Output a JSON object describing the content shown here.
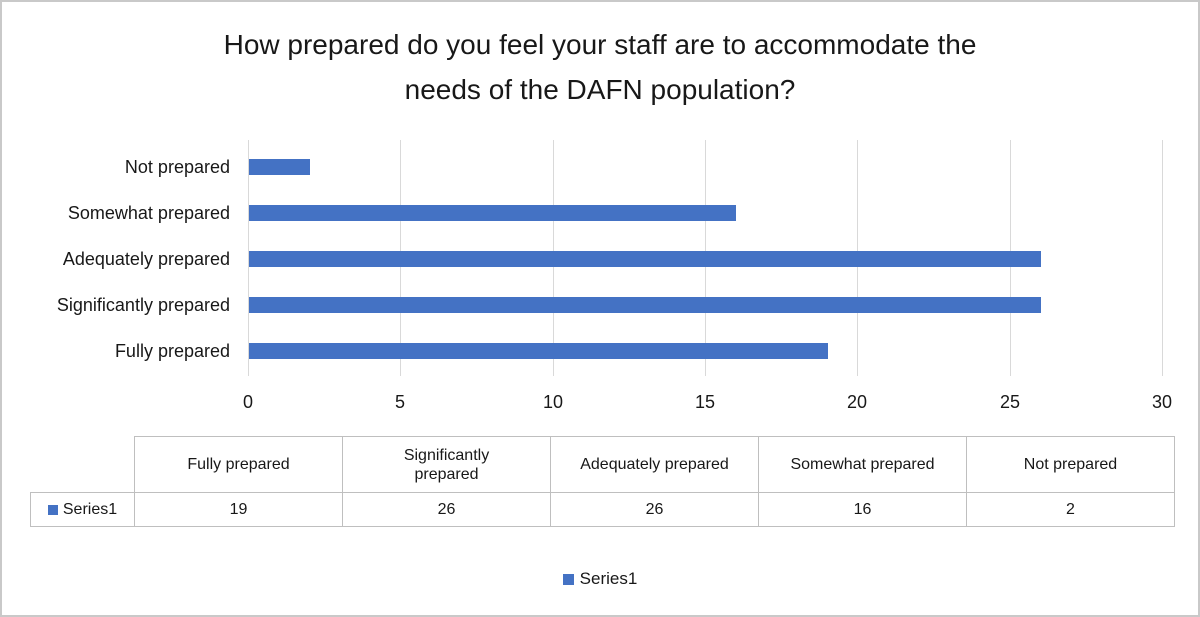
{
  "title_lines": [
    "How prepared do you feel your staff are to accommodate the",
    "needs of the DAFN population?"
  ],
  "chart_data": {
    "type": "bar",
    "orientation": "horizontal",
    "title": "How prepared do you feel your staff are to accommodate the needs of the DAFN population?",
    "categories": [
      "Fully prepared",
      "Significantly prepared",
      "Adequately prepared",
      "Somewhat prepared",
      "Not prepared"
    ],
    "series": [
      {
        "name": "Series1",
        "values": [
          19,
          26,
          26,
          16,
          2
        ]
      }
    ],
    "plot_order_top_to_bottom": [
      "Not prepared",
      "Somewhat prepared",
      "Adequately prepared",
      "Significantly prepared",
      "Fully prepared"
    ],
    "xlim": [
      0,
      30
    ],
    "x_ticks": [
      0,
      5,
      10,
      15,
      20,
      25,
      30
    ],
    "grid": true,
    "legend_position": "bottom",
    "bar_color": "#4472C4",
    "gridline_color": "#D9D9D9"
  },
  "data_table": {
    "row_header": "Series1",
    "columns": [
      "Fully prepared",
      "Significantly prepared",
      "Adequately prepared",
      "Somewhat prepared",
      "Not prepared"
    ],
    "values": [
      "19",
      "26",
      "26",
      "16",
      "2"
    ]
  },
  "legend": {
    "label": "Series1",
    "marker_color": "#4472C4"
  }
}
